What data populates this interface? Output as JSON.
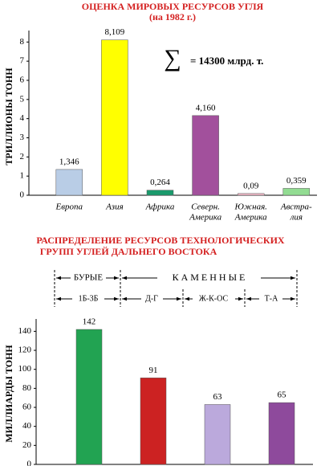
{
  "chart_data": [
    {
      "type": "bar",
      "title": "ОЦЕНКА МИРОВЫХ  РЕСУРСОВ УГЛЯ",
      "subtitle": "(на 1982 г.)",
      "y_label": "ТРИЛЛИОНЫ ТОНН",
      "annotation_symbol": "∑",
      "annotation": "= 14300 млрд. т.",
      "categories": [
        [
          "Европа"
        ],
        [
          "Азия"
        ],
        [
          "Африка"
        ],
        [
          "Северн.",
          "Америка"
        ],
        [
          "Южная.",
          "Америка"
        ],
        [
          "Австра-",
          "лия"
        ]
      ],
      "values": [
        1.346,
        8.109,
        0.264,
        4.16,
        0.09,
        0.359
      ],
      "value_labels": [
        "1,346",
        "8,109",
        "0,264",
        "4,160",
        "0,09",
        "0,359"
      ],
      "colors": [
        "#b9cde6",
        "#ffff00",
        "#1a9a6c",
        "#a2509c",
        "#f6bccb",
        "#92dc92"
      ],
      "ylim": [
        0,
        8.6
      ],
      "yticks": [
        0,
        1,
        2,
        3,
        4,
        5,
        6,
        7,
        8
      ]
    },
    {
      "type": "bar",
      "title": [
        "РАСПРЕДЕЛЕНИЕ РЕСУРСОВ ТЕХНОЛОГИЧЕСКИХ",
        "ГРУПП УГЛЕЙ ДАЛЬНЕГО ВОСТОКА"
      ],
      "y_label": "МИЛЛИАРДЫ ТОНН",
      "groups": [
        "БУРЫЕ",
        "К А М Е Н Н Ы Е"
      ],
      "categories": [
        "1Б-3Б",
        "Д-Г",
        "Ж-К-ОС",
        "Т-А"
      ],
      "values": [
        142,
        91,
        63,
        65
      ],
      "colors": [
        "#22a352",
        "#cc2222",
        "#bba9dc",
        "#8e4a9c"
      ],
      "ylim": [
        0,
        153
      ],
      "yticks": [
        0,
        20,
        40,
        60,
        80,
        100,
        120,
        140
      ]
    }
  ]
}
